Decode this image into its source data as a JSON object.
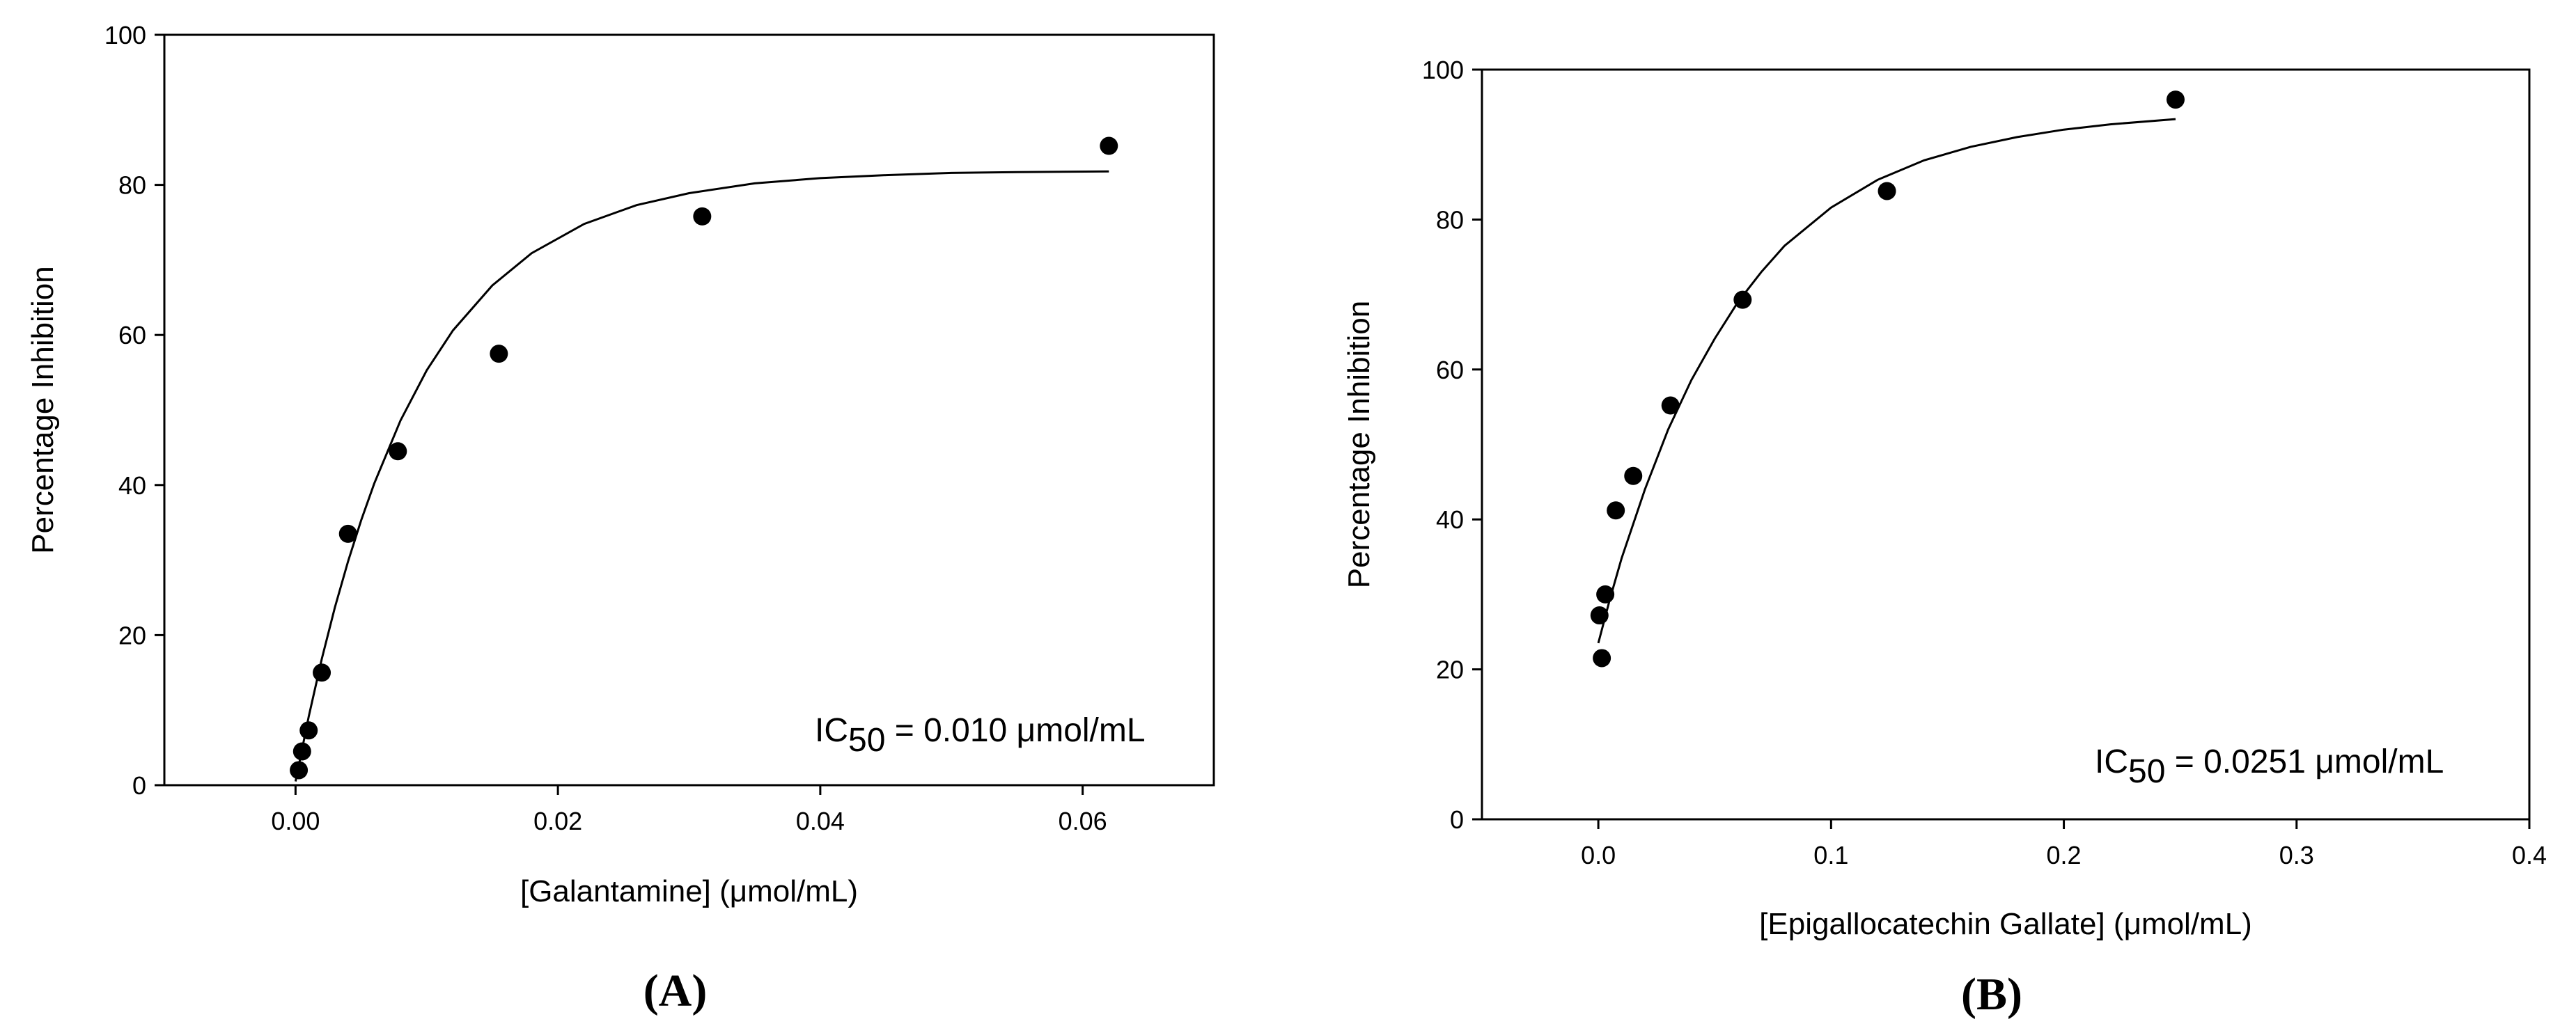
{
  "chart_data": [
    {
      "type": "scatter",
      "panel_label": "(A)",
      "xlabel": "[Galantamine] (μmol/mL)",
      "ylabel": "Percentage Inhibition",
      "xlim": [
        -0.01,
        0.07
      ],
      "ylim": [
        0,
        100
      ],
      "xticks": [
        0.0,
        0.02,
        0.04,
        0.06
      ],
      "xtick_labels": [
        "0.00",
        "0.02",
        "0.04",
        "0.06"
      ],
      "yticks": [
        0,
        20,
        40,
        60,
        80,
        100
      ],
      "ytick_labels": [
        "0",
        "20",
        "40",
        "60",
        "80",
        "100"
      ],
      "grid": false,
      "series": [
        {
          "name": "Galantamine",
          "x": [
            0.00025,
            0.0005,
            0.001,
            0.002,
            0.004,
            0.0078,
            0.0155,
            0.031,
            0.062
          ],
          "y": [
            2,
            4.5,
            7.3,
            15,
            33.5,
            44.5,
            57.5,
            75.8,
            85.2
          ]
        }
      ],
      "fit": {
        "name": "fitted curve",
        "x": [
          0.0,
          0.001,
          0.002,
          0.003,
          0.004,
          0.005,
          0.006,
          0.008,
          0.01,
          0.012,
          0.015,
          0.018,
          0.022,
          0.026,
          0.03,
          0.035,
          0.04,
          0.045,
          0.05,
          0.055,
          0.062
        ],
        "y": [
          0.5,
          9.1,
          16.8,
          23.7,
          29.8,
          35.3,
          40.2,
          48.6,
          55.3,
          60.6,
          66.6,
          70.9,
          74.8,
          77.3,
          78.9,
          80.2,
          80.9,
          81.3,
          81.6,
          81.7,
          81.8
        ]
      },
      "annotation": {
        "prefix": "IC",
        "subscript": "50",
        "suffix": " = 0.010 μmol/mL"
      }
    },
    {
      "type": "scatter",
      "panel_label": "(B)",
      "xlabel": "[Epigallocatechin Gallate] (μmol/mL)",
      "ylabel": "Percentage Inhibition",
      "xlim": [
        -0.05,
        0.4
      ],
      "ylim": [
        0,
        100
      ],
      "xticks": [
        0.0,
        0.1,
        0.2,
        0.3,
        0.4
      ],
      "xtick_labels": [
        "0.0",
        "0.1",
        "0.2",
        "0.3",
        "0.4"
      ],
      "yticks": [
        0,
        20,
        40,
        60,
        80,
        100
      ],
      "ytick_labels": [
        "0",
        "20",
        "40",
        "60",
        "80",
        "100"
      ],
      "grid": false,
      "series": [
        {
          "name": "Epigallocatechin Gallate",
          "x": [
            0.0005,
            0.0015,
            0.003,
            0.0075,
            0.015,
            0.031,
            0.062,
            0.124,
            0.248
          ],
          "y": [
            27.2,
            21.5,
            30,
            41.2,
            45.8,
            55.2,
            69.3,
            83.8,
            96
          ]
        }
      ],
      "fit": {
        "name": "fitted curve",
        "x": [
          0.0,
          0.005,
          0.01,
          0.02,
          0.03,
          0.04,
          0.05,
          0.06,
          0.07,
          0.08,
          0.1,
          0.12,
          0.14,
          0.16,
          0.18,
          0.2,
          0.22,
          0.248
        ],
        "y": [
          23.5,
          29.4,
          34.8,
          44.0,
          52.0,
          58.6,
          64.1,
          69.0,
          73.0,
          76.5,
          81.6,
          85.3,
          87.9,
          89.7,
          91.0,
          92.0,
          92.7,
          93.4
        ]
      },
      "annotation": {
        "prefix": "IC",
        "subscript": "50",
        "suffix": " = 0.0251 μmol/mL"
      }
    }
  ]
}
